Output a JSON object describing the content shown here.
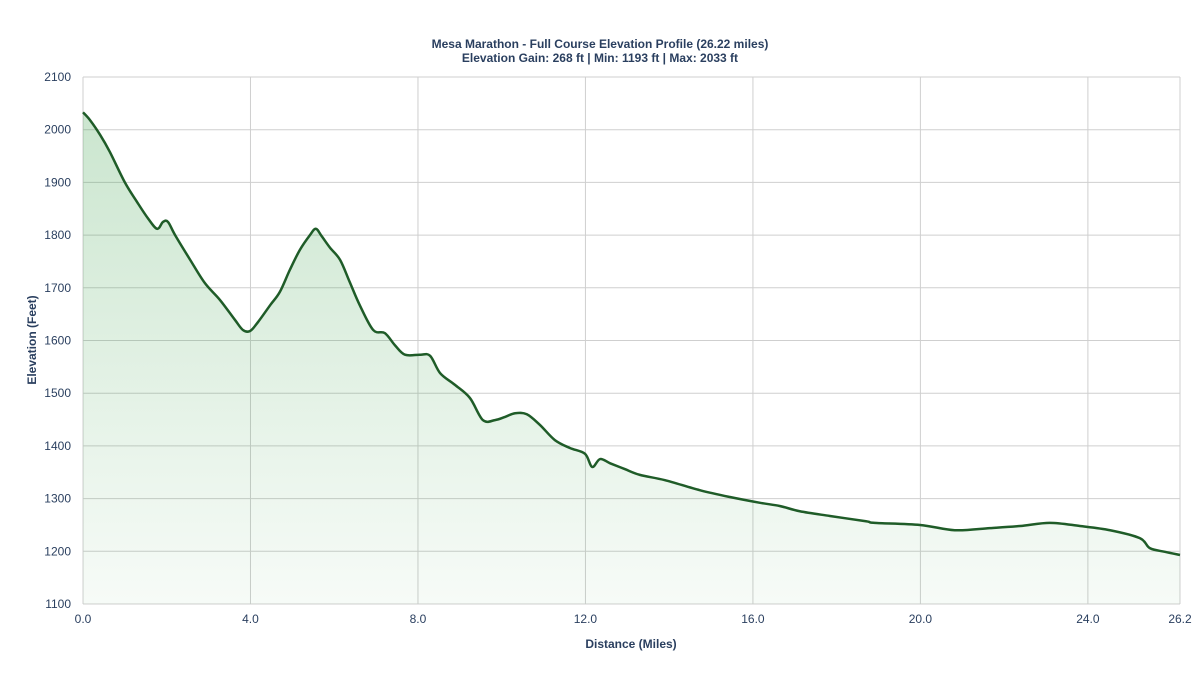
{
  "chart_data": {
    "type": "area",
    "title": "Mesa Marathon - Full Course Elevation Profile (26.22 miles)",
    "subtitle": "Elevation Gain: 268 ft | Min: 1193 ft | Max: 2033 ft",
    "xlabel": "Distance (Miles)",
    "ylabel": "Elevation (Feet)",
    "xlim": [
      0,
      26.2
    ],
    "ylim": [
      1100,
      2100
    ],
    "xticks": [
      "0.0",
      "4.0",
      "8.0",
      "12.0",
      "16.0",
      "20.0",
      "24.0",
      "26.2"
    ],
    "xtick_values": [
      0,
      4,
      8,
      12,
      16,
      20,
      24,
      26.2
    ],
    "yticks": [
      "1100",
      "1200",
      "1300",
      "1400",
      "1500",
      "1600",
      "1700",
      "1800",
      "1900",
      "2000",
      "2100"
    ],
    "ytick_values": [
      1100,
      1200,
      1300,
      1400,
      1500,
      1600,
      1700,
      1800,
      1900,
      2000,
      2100
    ],
    "grid": true,
    "colors": {
      "line": "#1f5c28",
      "fill": "#2e9a3e",
      "text": "#2a3f5f",
      "grid": "#cfcfcf"
    },
    "x": [
      0,
      0.17,
      0.41,
      0.64,
      1.0,
      1.29,
      1.55,
      1.77,
      1.91,
      2.03,
      2.2,
      2.56,
      2.91,
      3.27,
      3.63,
      3.82,
      3.99,
      4.18,
      4.47,
      4.7,
      4.94,
      5.18,
      5.42,
      5.56,
      5.7,
      5.9,
      6.14,
      6.37,
      6.61,
      6.93,
      7.21,
      7.45,
      7.69,
      8.05,
      8.29,
      8.53,
      8.88,
      9.24,
      9.55,
      9.84,
      10.08,
      10.32,
      10.6,
      10.91,
      11.27,
      11.63,
      11.99,
      12.16,
      12.35,
      12.59,
      12.94,
      13.3,
      13.9,
      14.73,
      15.45,
      16.17,
      16.64,
      17.12,
      17.84,
      18.7,
      18.91,
      19.99,
      20.82,
      21.66,
      22.38,
      23.09,
      23.81,
      24.53,
      25.24,
      25.48,
      25.84,
      26.2
    ],
    "y": [
      2033,
      2018,
      1990,
      1958,
      1900,
      1863,
      1832,
      1812,
      1825,
      1825,
      1800,
      1753,
      1709,
      1677,
      1639,
      1620,
      1618,
      1635,
      1667,
      1692,
      1734,
      1772,
      1800,
      1812,
      1798,
      1776,
      1753,
      1711,
      1667,
      1620,
      1614,
      1591,
      1573,
      1573,
      1571,
      1538,
      1516,
      1491,
      1449,
      1449,
      1455,
      1462,
      1460,
      1440,
      1411,
      1396,
      1385,
      1360,
      1375,
      1367,
      1356,
      1345,
      1335,
      1316,
      1303,
      1292,
      1286,
      1276,
      1267,
      1257,
      1254,
      1250,
      1240,
      1244,
      1248,
      1254,
      1248,
      1240,
      1225,
      1206,
      1199,
      1193
    ]
  }
}
